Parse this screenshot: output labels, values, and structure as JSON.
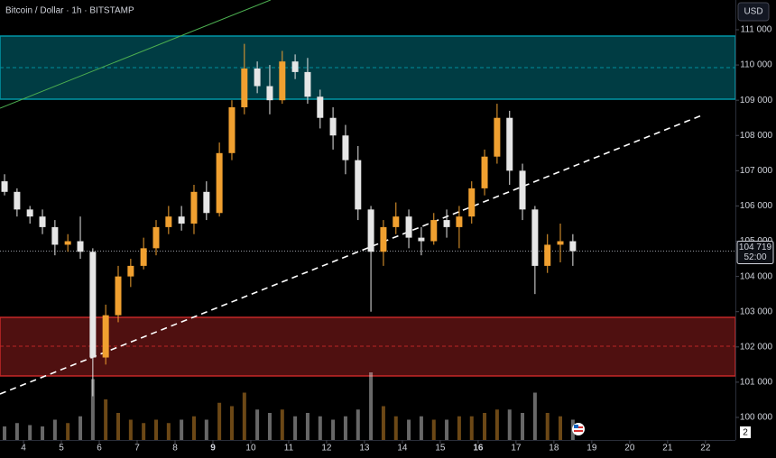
{
  "chart_data": {
    "type": "candlestick",
    "title": "Bitcoin / Dollar · 1h · BITSTAMP",
    "currency": "USD",
    "countdown": "52:00",
    "badge": "2",
    "last_price": {
      "value": 104719,
      "label": "104 719"
    },
    "up_color": "#f0a030",
    "down_color": "#e6e6e6",
    "x": [
      3.5,
      3.83,
      4.17,
      4.5,
      4.83,
      5.17,
      5.5,
      5.83,
      6.17,
      6.5,
      6.83,
      7.17,
      7.5,
      7.83,
      8.17,
      8.5,
      8.83,
      9.17,
      9.5,
      9.83,
      10.17,
      10.5,
      10.83,
      11.17,
      11.5,
      11.83,
      12.17,
      12.5,
      12.83,
      13.17,
      13.5,
      13.83,
      14.17,
      14.5,
      14.83,
      15.17,
      15.5,
      15.83,
      16.17,
      16.5,
      16.83,
      17.17,
      17.5,
      17.83,
      18.17,
      18.5
    ],
    "open": [
      106700,
      106400,
      105900,
      105700,
      105400,
      104900,
      105000,
      104700,
      101700,
      102900,
      104000,
      104300,
      104800,
      105400,
      105700,
      105500,
      106400,
      105800,
      107500,
      108800,
      109900,
      109400,
      109000,
      110100,
      109800,
      109100,
      108500,
      108000,
      107300,
      105900,
      104700,
      105400,
      105700,
      105100,
      105000,
      105600,
      105400,
      105700,
      106500,
      107400,
      108500,
      107000,
      105900,
      104300,
      104900,
      105000
    ],
    "high": [
      106900,
      106500,
      106000,
      105900,
      105600,
      105200,
      105700,
      104800,
      103200,
      104300,
      104500,
      105100,
      105600,
      106000,
      106000,
      106600,
      106700,
      107800,
      109000,
      110600,
      110100,
      110000,
      110400,
      110300,
      110200,
      109300,
      108800,
      108300,
      107700,
      106000,
      105600,
      106100,
      105900,
      105400,
      105800,
      105900,
      106000,
      106700,
      107600,
      108900,
      108700,
      107200,
      106000,
      105200,
      105500,
      105200
    ],
    "low": [
      106300,
      105700,
      105500,
      105200,
      104600,
      104700,
      104500,
      100600,
      101500,
      102700,
      103700,
      104200,
      104600,
      105200,
      105300,
      105200,
      105600,
      105700,
      107300,
      108600,
      109200,
      108600,
      108900,
      109600,
      108900,
      108200,
      107600,
      106900,
      105600,
      103000,
      104300,
      105200,
      104800,
      104600,
      104900,
      105100,
      104800,
      105500,
      106300,
      107200,
      106600,
      105600,
      103500,
      104100,
      104400,
      104300
    ],
    "close": [
      106400,
      105900,
      105700,
      105400,
      104900,
      105000,
      104700,
      101700,
      102900,
      104000,
      104300,
      104800,
      105400,
      105700,
      105500,
      106400,
      105800,
      107500,
      108800,
      109900,
      109400,
      109000,
      110100,
      109800,
      109100,
      108500,
      108000,
      107300,
      105900,
      104700,
      105400,
      105700,
      105100,
      105000,
      105600,
      105400,
      105700,
      106500,
      107400,
      108500,
      107000,
      105900,
      104300,
      104900,
      105000,
      104719
    ],
    "volume": [
      20,
      25,
      22,
      20,
      30,
      25,
      35,
      90,
      60,
      40,
      30,
      25,
      30,
      25,
      30,
      35,
      30,
      55,
      50,
      70,
      45,
      40,
      45,
      35,
      40,
      35,
      30,
      35,
      45,
      100,
      50,
      35,
      30,
      35,
      30,
      30,
      35,
      35,
      40,
      45,
      45,
      40,
      70,
      40,
      35,
      30
    ],
    "volume_lim": [
      0,
      200
    ],
    "zones": [
      {
        "range": [
          109030,
          110821
        ],
        "mid": 109926,
        "color": "#0097a7"
      },
      {
        "range": [
          101177,
          102839
        ],
        "mid": 102021,
        "color": "#c62828"
      }
    ],
    "lines": [
      {
        "x": [
          3.38,
          21.9
        ],
        "y": [
          100665,
          108570
        ],
        "color": "#ffffff",
        "dashed": true
      },
      {
        "x": [
          3.38,
          10.52
        ],
        "y": [
          108774,
          111844
        ],
        "color": "#4caf50",
        "dashed": false
      }
    ],
    "xlim": [
      3.38,
      22.79
    ],
    "ylim": [
      99360,
      111844
    ],
    "xticks": [
      4,
      5,
      6,
      7,
      8,
      9,
      10,
      11,
      12,
      13,
      14,
      15,
      16,
      17,
      18,
      19,
      20,
      21,
      22
    ],
    "bold_xticks": [
      9,
      16
    ],
    "yticks": [
      {
        "value": 100000,
        "label": "100 000"
      },
      {
        "value": 101000,
        "label": "101 000"
      },
      {
        "value": 102000,
        "label": "102 000"
      },
      {
        "value": 103000,
        "label": "103 000"
      },
      {
        "value": 104000,
        "label": "104 000"
      },
      {
        "value": 105000,
        "label": "105 000"
      },
      {
        "value": 106000,
        "label": "106 000"
      },
      {
        "value": 107000,
        "label": "107 000"
      },
      {
        "value": 108000,
        "label": "108 000"
      },
      {
        "value": 109000,
        "label": "109 000"
      },
      {
        "value": 110000,
        "label": "110 000"
      },
      {
        "value": 111000,
        "label": "111 000"
      }
    ]
  }
}
